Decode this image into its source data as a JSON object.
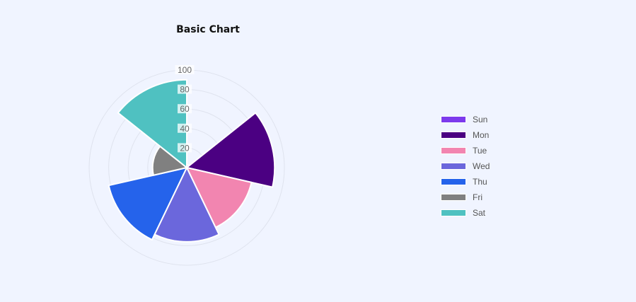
{
  "chart_data": {
    "type": "polarArea",
    "title": "Basic Chart",
    "categories": [
      "Sun",
      "Mon",
      "Tue",
      "Wed",
      "Thu",
      "Fri",
      "Sat"
    ],
    "values": [
      3,
      90,
      68,
      76,
      82,
      35,
      90
    ],
    "colors": [
      "#7c3aed",
      "#4b0082",
      "#f285b0",
      "#6b67dc",
      "#2563eb",
      "#808080",
      "#4fc1c1"
    ],
    "radial_ticks": [
      20,
      40,
      60,
      80,
      100
    ],
    "rmax": 100,
    "grid": true,
    "legend_position": "right"
  }
}
